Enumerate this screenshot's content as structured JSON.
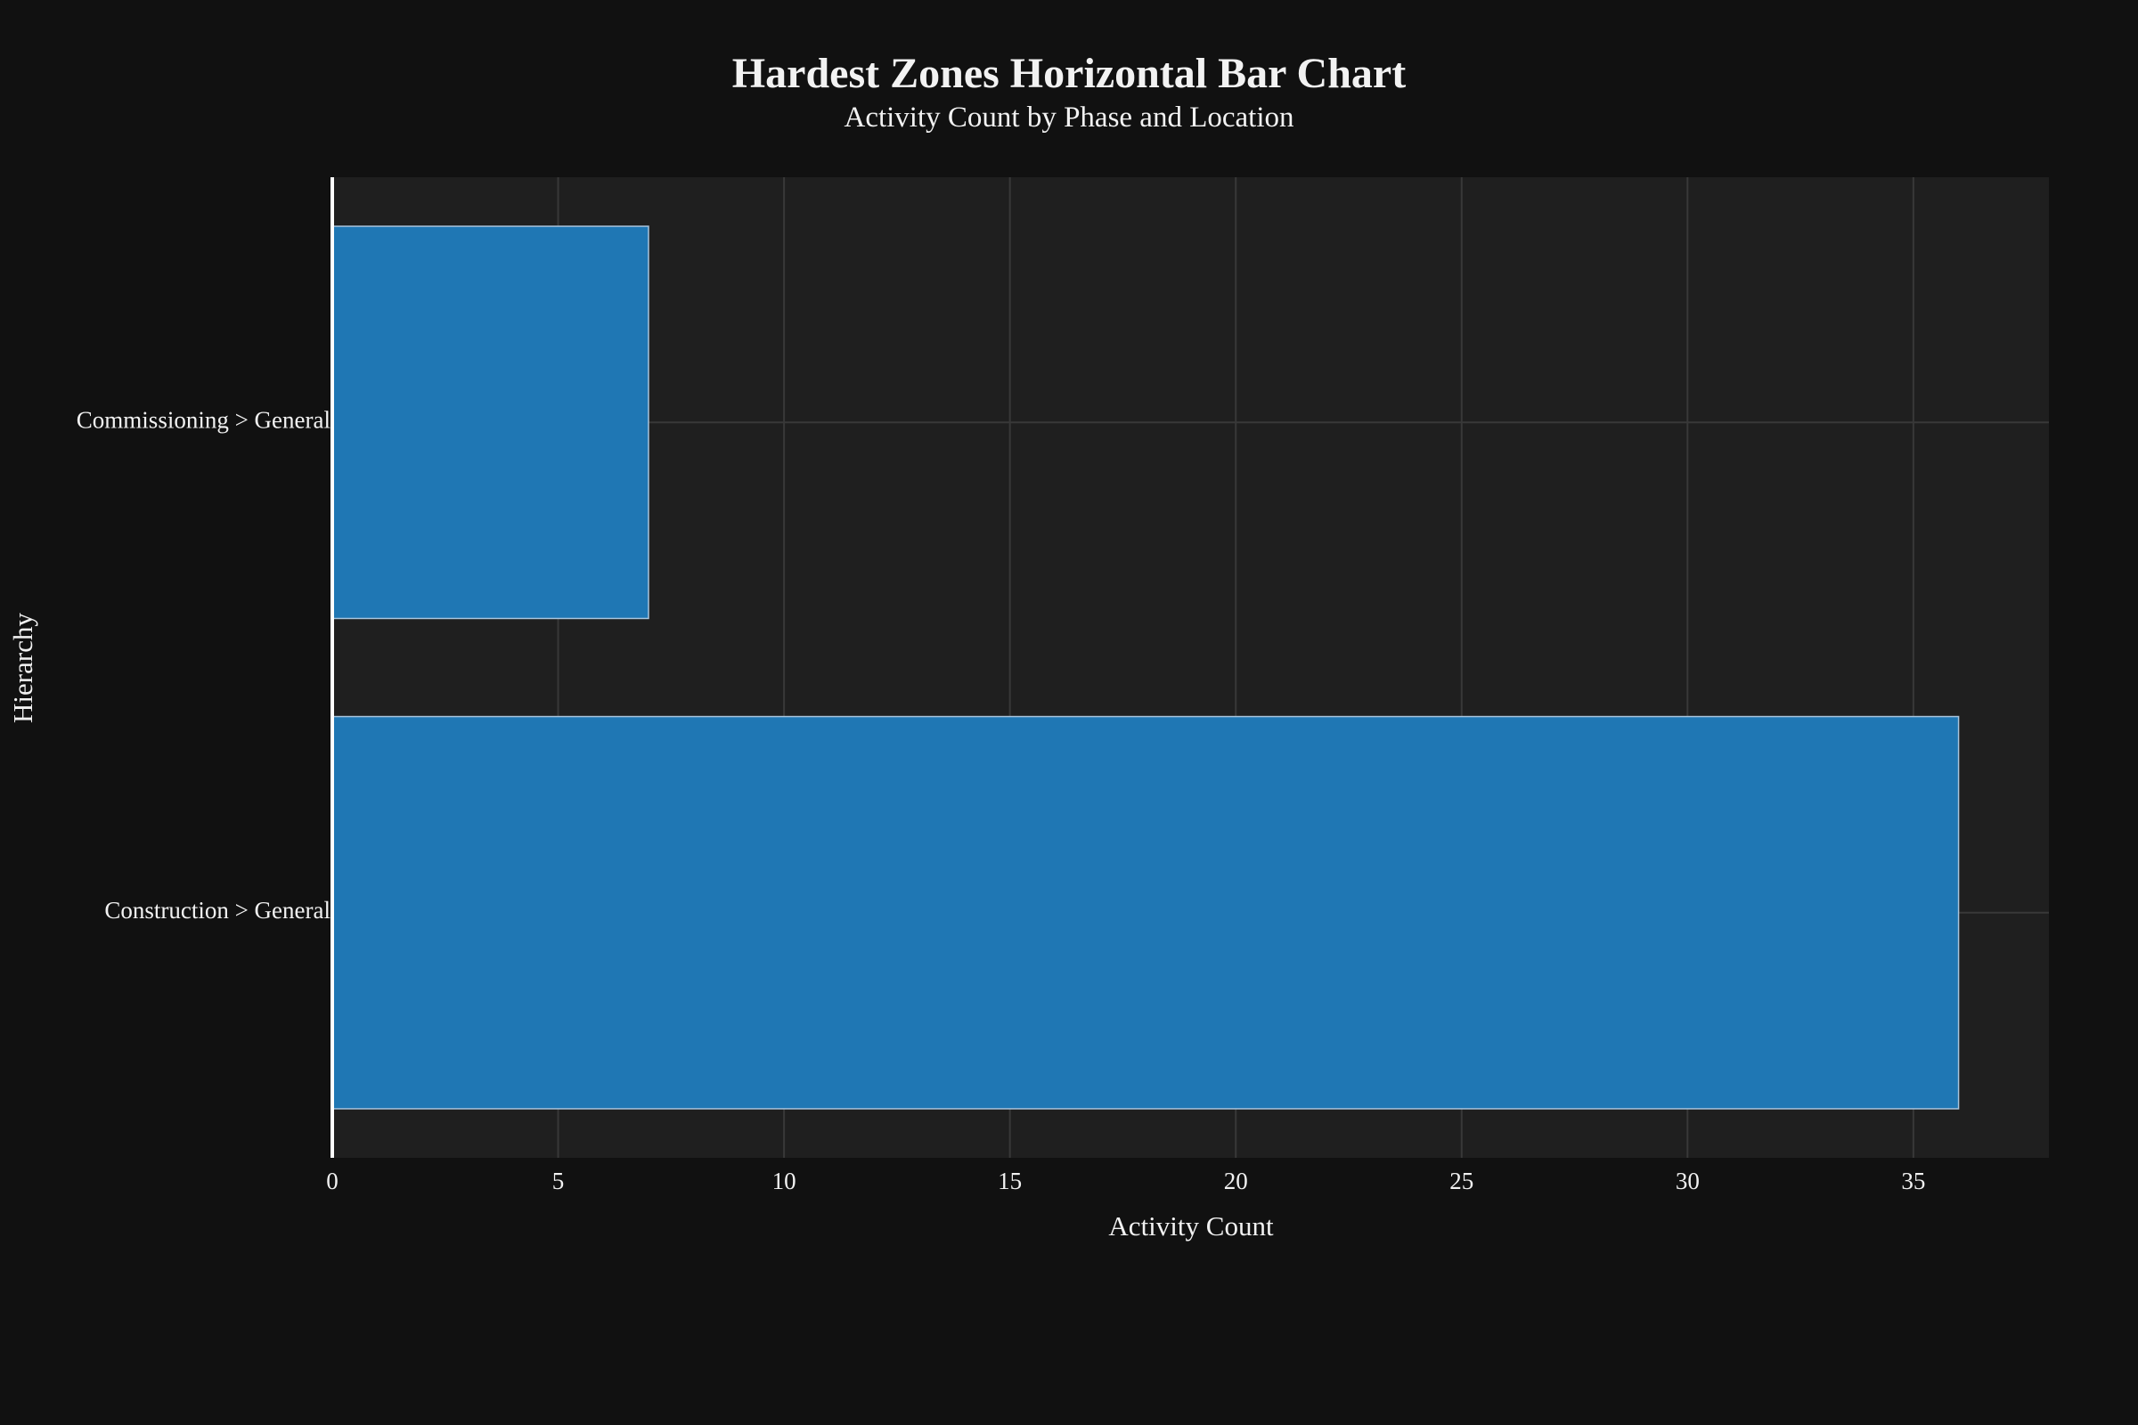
{
  "chart_data": {
    "type": "bar",
    "orientation": "horizontal",
    "title": "Hardest Zones Horizontal Bar Chart",
    "subtitle": "Activity Count by Phase and Location",
    "xlabel": "Activity Count",
    "ylabel": "Hierarchy",
    "categories": [
      "Commissioning > General",
      "Construction > General"
    ],
    "values": [
      7,
      36
    ],
    "xlim": [
      0,
      38
    ],
    "xticks": [
      0,
      5,
      10,
      15,
      20,
      25,
      30,
      35
    ],
    "grid": true,
    "legend": "none",
    "colors": {
      "page_background": "#111111",
      "plot_background": "#1f1f1f",
      "bar_fill": "#1f77b4",
      "bar_outline": "#a9c4dc",
      "grid": "#383838",
      "axis_line": "#ffffff",
      "text": "#f2f2f2"
    }
  }
}
